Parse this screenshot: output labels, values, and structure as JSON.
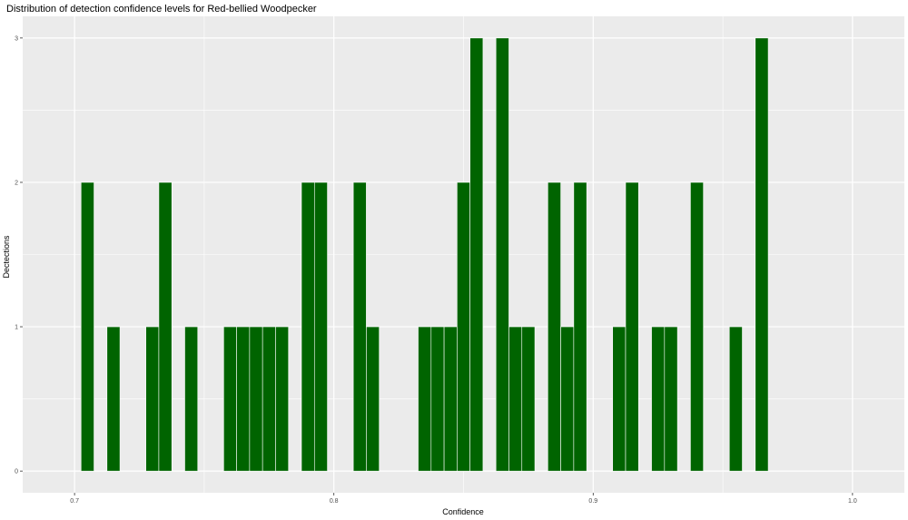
{
  "chart_data": {
    "type": "bar",
    "title": "Distribution of detection confidence levels for Red-bellied Woodpecker",
    "xlabel": "Confidence",
    "ylabel": "Dectections",
    "xlim": [
      0.68,
      1.02
    ],
    "ylim": [
      -0.15,
      3.15
    ],
    "x_ticks": [
      0.7,
      0.8,
      0.9,
      1.0
    ],
    "x_tick_labels": [
      "0.7",
      "0.8",
      "0.9",
      "1.0"
    ],
    "y_ticks": [
      0,
      1,
      2,
      3
    ],
    "y_tick_labels": [
      "0",
      "1",
      "2",
      "3"
    ],
    "bin_width": 0.005,
    "grid": true,
    "bar_color": "#006400",
    "panel_background": "#ebebeb",
    "grid_color": "#ffffff",
    "bins": [
      {
        "x": 0.705,
        "count": 2
      },
      {
        "x": 0.715,
        "count": 1
      },
      {
        "x": 0.73,
        "count": 1
      },
      {
        "x": 0.735,
        "count": 2
      },
      {
        "x": 0.745,
        "count": 1
      },
      {
        "x": 0.76,
        "count": 1
      },
      {
        "x": 0.765,
        "count": 1
      },
      {
        "x": 0.77,
        "count": 1
      },
      {
        "x": 0.775,
        "count": 1
      },
      {
        "x": 0.78,
        "count": 1
      },
      {
        "x": 0.79,
        "count": 2
      },
      {
        "x": 0.795,
        "count": 2
      },
      {
        "x": 0.81,
        "count": 2
      },
      {
        "x": 0.815,
        "count": 1
      },
      {
        "x": 0.835,
        "count": 1
      },
      {
        "x": 0.84,
        "count": 1
      },
      {
        "x": 0.845,
        "count": 1
      },
      {
        "x": 0.85,
        "count": 2
      },
      {
        "x": 0.855,
        "count": 3
      },
      {
        "x": 0.865,
        "count": 3
      },
      {
        "x": 0.87,
        "count": 1
      },
      {
        "x": 0.875,
        "count": 1
      },
      {
        "x": 0.885,
        "count": 2
      },
      {
        "x": 0.89,
        "count": 1
      },
      {
        "x": 0.895,
        "count": 2
      },
      {
        "x": 0.91,
        "count": 1
      },
      {
        "x": 0.915,
        "count": 2
      },
      {
        "x": 0.925,
        "count": 1
      },
      {
        "x": 0.93,
        "count": 1
      },
      {
        "x": 0.94,
        "count": 2
      },
      {
        "x": 0.955,
        "count": 1
      },
      {
        "x": 0.965,
        "count": 3
      }
    ]
  }
}
